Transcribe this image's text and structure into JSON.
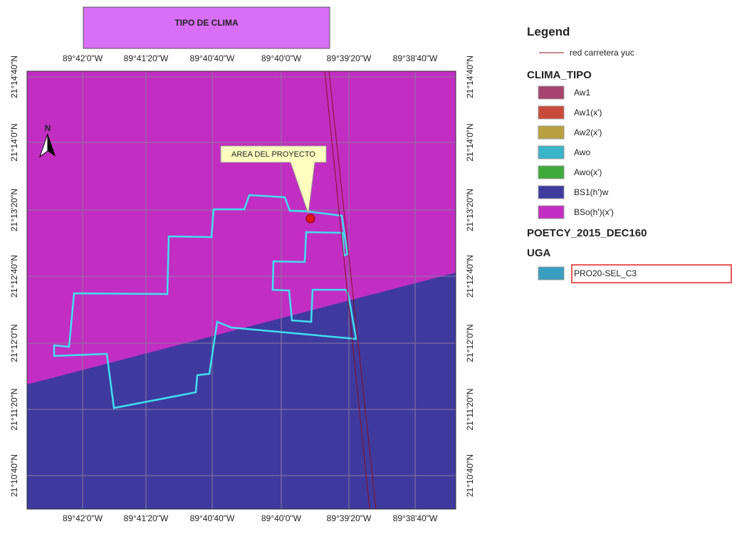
{
  "map_title": "TIPO DE CLIMA",
  "lon_labels": [
    "89°42'0\"W",
    "89°41'20\"W",
    "89°40'40\"W",
    "89°40'0\"W",
    "89°39'20\"W",
    "89°38'40\"W"
  ],
  "lat_labels": [
    "21°14'40\"N",
    "21°14'0\"N",
    "21°13'20\"N",
    "21°12'40\"N",
    "21°12'0\"N",
    "21°11'20\"N",
    "21°10'40\"N"
  ],
  "north": "N",
  "callout": "AREA DEL PROYECTO",
  "legend": {
    "title": "Legend",
    "road": "red carretera yuc",
    "clima_heading": "CLIMA_TIPO",
    "clima_items": [
      {
        "label": "Aw1",
        "color": "#a6446e"
      },
      {
        "label": "Aw1(x')",
        "color": "#c84a3a"
      },
      {
        "label": "Aw2(x')",
        "color": "#b8a040"
      },
      {
        "label": "Awo",
        "color": "#3ab4c8"
      },
      {
        "label": "Awo(x')",
        "color": "#3eaa3a"
      },
      {
        "label": "BS1(h')w",
        "color": "#3f3a9e"
      },
      {
        "label": "BSo(h')(x')",
        "color": "#c22ec2"
      }
    ],
    "poetcy_heading": "POETCY_2015_DEC160",
    "uga_heading": "UGA",
    "uga_items": [
      {
        "label": "PRO20-SEL_C3",
        "color": "#3a9ec0"
      }
    ]
  }
}
